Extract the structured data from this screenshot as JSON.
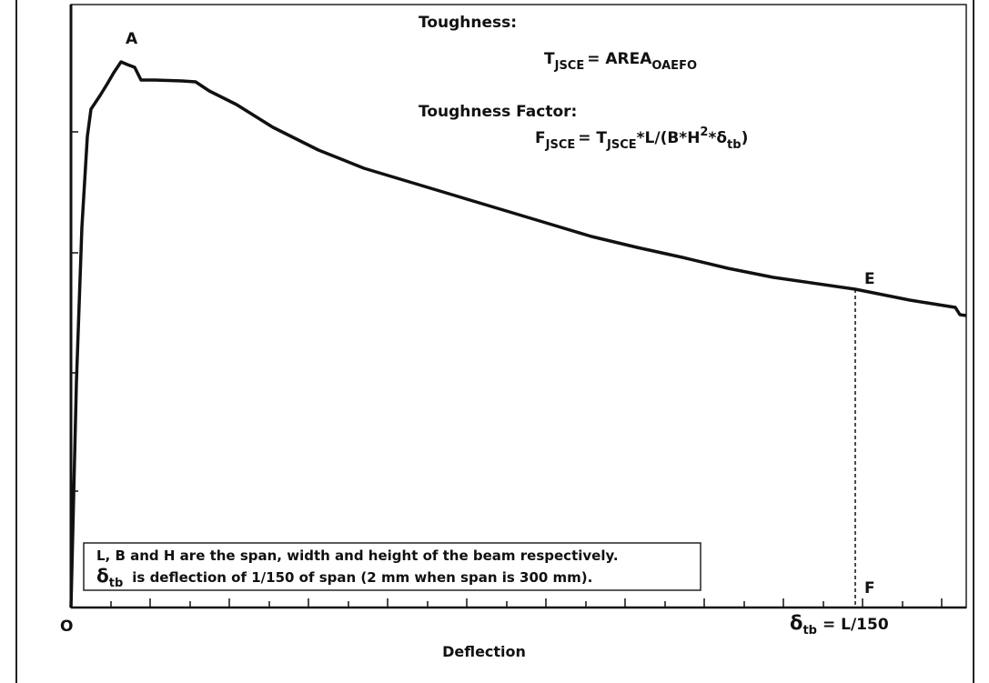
{
  "point_labels": {
    "A": "A",
    "E": "E",
    "F": "F",
    "O": "O"
  },
  "toughness": {
    "label": "Toughness:",
    "formula": [
      "T",
      "JSCE",
      "= AREA",
      "OAEFO"
    ]
  },
  "toughness_factor": {
    "label": "Toughness Factor:",
    "formula": [
      "F",
      "JSCE",
      "= T",
      "JSCE",
      "*L/(B*H",
      "2",
      "*δ",
      "tb",
      ")"
    ]
  },
  "note": {
    "line1": "L, B and H are the span, width and height of the beam respectively.",
    "line2": [
      "δ",
      "tb",
      "is deflection of 1/150 of span (2 mm when span is 300 mm)."
    ]
  },
  "x_marker": [
    "δ",
    "tb",
    "= L/150"
  ],
  "x_axis_label": "Deflection"
}
